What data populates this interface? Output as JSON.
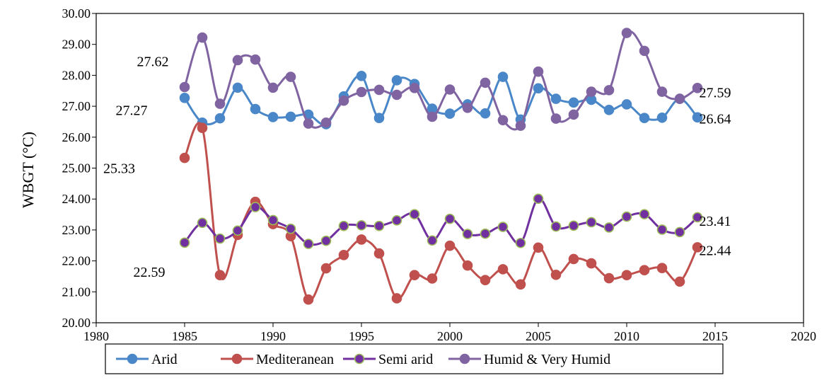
{
  "chart_data": {
    "type": "line",
    "xlabel": "",
    "ylabel": "WBGT (°C)",
    "xlim": [
      1980,
      2020
    ],
    "ylim": [
      20,
      30
    ],
    "xticks": [
      "1980",
      "1985",
      "1990",
      "1995",
      "2000",
      "2005",
      "2010",
      "2015",
      "2020"
    ],
    "yticks": [
      "20.00",
      "21.00",
      "22.00",
      "23.00",
      "24.00",
      "25.00",
      "26.00",
      "27.00",
      "28.00",
      "29.00",
      "30.00"
    ],
    "grid": false,
    "legend_position": "bottom",
    "x": [
      1985,
      1986,
      1987,
      1988,
      1989,
      1990,
      1991,
      1992,
      1993,
      1994,
      1995,
      1996,
      1997,
      1998,
      1999,
      2000,
      2001,
      2002,
      2003,
      2004,
      2005,
      2006,
      2007,
      2008,
      2009,
      2010,
      2011,
      2012,
      2013,
      2014
    ],
    "series": [
      {
        "name": "Arid",
        "color": "#4a87c8",
        "marker_fill": "#4a87c8",
        "marker_stroke": "#4a87c8",
        "values": [
          27.27,
          26.47,
          26.61,
          27.6,
          26.91,
          26.65,
          26.66,
          26.73,
          26.42,
          27.32,
          27.98,
          26.62,
          27.84,
          27.72,
          26.92,
          26.76,
          27.06,
          26.77,
          27.95,
          26.57,
          27.58,
          27.24,
          27.12,
          27.21,
          26.88,
          27.06,
          26.62,
          26.63,
          27.24,
          26.64
        ]
      },
      {
        "name": "Mediteranean",
        "color": "#c0504d",
        "marker_fill": "#c0504d",
        "marker_stroke": "#c0504d",
        "values": [
          25.33,
          26.3,
          21.54,
          22.84,
          23.91,
          23.19,
          22.8,
          20.75,
          21.76,
          22.19,
          22.69,
          22.24,
          20.79,
          21.54,
          21.43,
          22.49,
          21.85,
          21.38,
          21.73,
          21.24,
          22.43,
          21.55,
          22.06,
          21.92,
          21.44,
          21.54,
          21.7,
          21.77,
          21.33,
          22.44
        ]
      },
      {
        "name": "Semi arid",
        "color": "#7030a0",
        "marker_fill": "#7030a0",
        "marker_stroke": "#9bbb59",
        "values": [
          22.59,
          23.23,
          22.72,
          22.98,
          23.74,
          23.32,
          23.04,
          22.55,
          22.65,
          23.13,
          23.15,
          23.13,
          23.31,
          23.51,
          22.66,
          23.36,
          22.87,
          22.88,
          23.1,
          22.58,
          24.01,
          23.11,
          23.14,
          23.25,
          23.08,
          23.43,
          23.51,
          23.01,
          22.93,
          23.41
        ]
      },
      {
        "name": "Humid & Very Humid",
        "color": "#8064a2",
        "marker_fill": "#8064a2",
        "marker_stroke": "#8064a2",
        "values": [
          27.62,
          29.22,
          27.08,
          28.49,
          28.51,
          27.6,
          27.95,
          26.44,
          26.47,
          27.18,
          27.46,
          27.53,
          27.37,
          27.59,
          26.66,
          27.54,
          26.95,
          27.76,
          26.55,
          26.37,
          28.12,
          26.6,
          26.73,
          27.47,
          27.52,
          29.37,
          28.79,
          27.47,
          27.24,
          27.59
        ]
      }
    ],
    "annotations": [
      {
        "text": "27.62",
        "x": 1983.2,
        "y": 28.45
      },
      {
        "text": "27.27",
        "x": 1982.0,
        "y": 26.88
      },
      {
        "text": "25.33",
        "x": 1981.3,
        "y": 25.0
      },
      {
        "text": "22.59",
        "x": 1983.0,
        "y": 21.65
      },
      {
        "text": "27.59",
        "x": 2015.0,
        "y": 27.45
      },
      {
        "text": "26.64",
        "x": 2015.0,
        "y": 26.6
      },
      {
        "text": "23.41",
        "x": 2015.0,
        "y": 23.3
      },
      {
        "text": "22.44",
        "x": 2015.0,
        "y": 22.35
      }
    ]
  }
}
